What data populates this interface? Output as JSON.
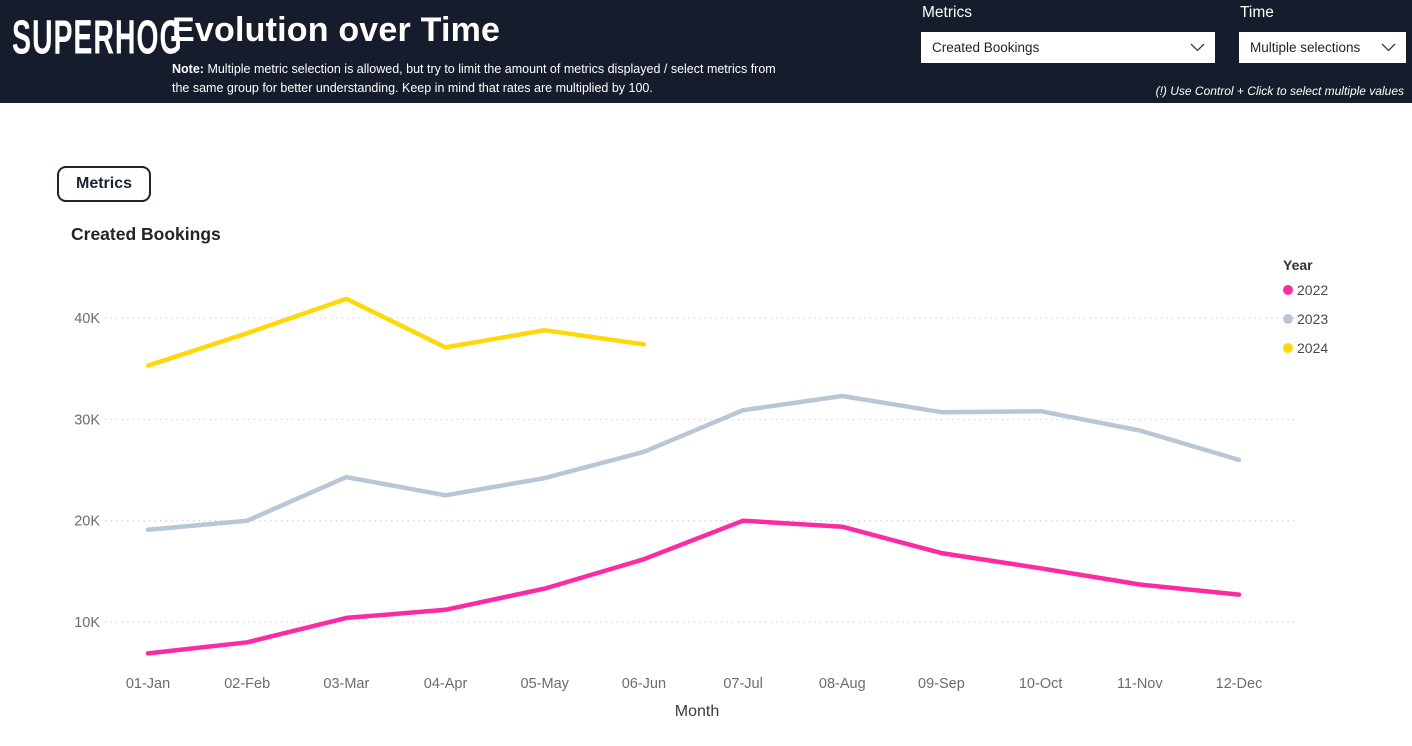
{
  "header": {
    "logo_text": "SUPERHOG",
    "title": "Evolution over Time",
    "note_prefix": "Note:",
    "note_text": "Multiple metric selection is allowed, but try to limit the amount of metrics displayed / select metrics from the same group for better understanding. Keep in mind that rates are multiplied by 100.",
    "metrics_label": "Metrics",
    "metrics_value": "Created Bookings",
    "time_label": "Time",
    "time_value": "Multiple selections",
    "hint": "(!) Use Control + Click to select multiple values",
    "bg_color": "#151C2B"
  },
  "body": {
    "metrics_button_label": "Metrics"
  },
  "chart_data": {
    "type": "line",
    "title": "Created Bookings",
    "xlabel": "Month",
    "ylabel": "",
    "categories": [
      "01-Jan",
      "02-Feb",
      "03-Mar",
      "04-Apr",
      "05-May",
      "06-Jun",
      "07-Jul",
      "08-Aug",
      "09-Sep",
      "10-Oct",
      "11-Nov",
      "12-Dec"
    ],
    "y_ticks": [
      "10K",
      "20K",
      "30K",
      "40K"
    ],
    "ylim": [
      0,
      45000
    ],
    "grid": "horizontal-dotted",
    "legend_title": "Year",
    "legend_position": "right",
    "series": [
      {
        "name": "2022",
        "color": "#FB2BA3",
        "values": [
          6900,
          8000,
          10400,
          11200,
          13300,
          16200,
          20000,
          19400,
          16800,
          15300,
          13700,
          12700
        ]
      },
      {
        "name": "2023",
        "color": "#B9C7D5",
        "values": [
          19100,
          20000,
          24300,
          22500,
          24200,
          26800,
          30900,
          32300,
          30700,
          30800,
          28900,
          26000
        ]
      },
      {
        "name": "2024",
        "color": "#FFD80A",
        "values": [
          35300,
          38500,
          41900,
          37100,
          38800,
          37400,
          null,
          null,
          null,
          null,
          null,
          null
        ]
      }
    ]
  }
}
